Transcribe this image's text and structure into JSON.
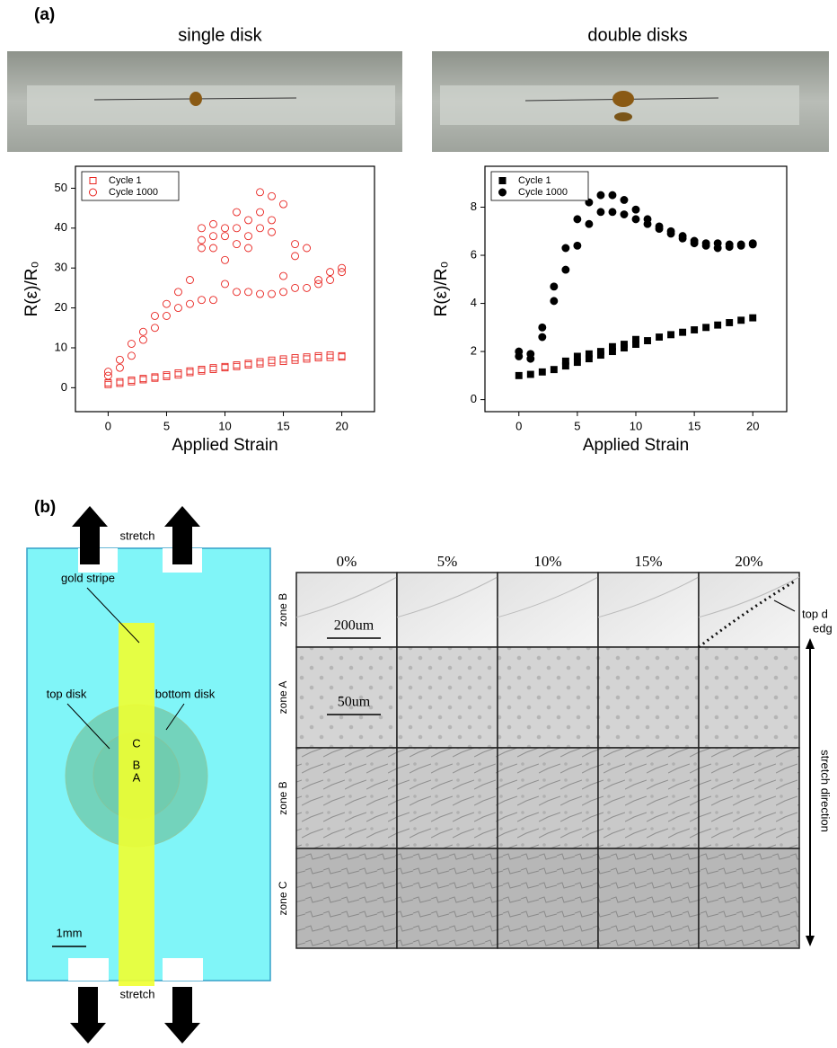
{
  "panel_a_label": "(a)",
  "chart_data": [
    {
      "type": "scatter",
      "title": "single disk",
      "xlabel": "Applied Strain",
      "ylabel": "R(ε)/R₀",
      "xlim": [
        -2.8,
        22.8
      ],
      "ylim": [
        -6,
        55.5
      ],
      "xticks": [
        0,
        5,
        10,
        15,
        20
      ],
      "yticks": [
        0,
        10,
        20,
        30,
        40,
        50
      ],
      "legend": "upper left",
      "series": [
        {
          "name": "Cycle 1",
          "color": "#e8231f",
          "marker": "square",
          "filled": false,
          "x": [
            0,
            1,
            2,
            3,
            4,
            5,
            6,
            7,
            8,
            9,
            10,
            11,
            12,
            13,
            14,
            15,
            16,
            17,
            18,
            19,
            20,
            0,
            1,
            2,
            3,
            4,
            5,
            6,
            7,
            8,
            9,
            10,
            11,
            12,
            13,
            14,
            15,
            16,
            17,
            18,
            19,
            20
          ],
          "values": [
            1.2,
            1.5,
            1.9,
            2.3,
            2.7,
            3.2,
            3.7,
            4.2,
            4.6,
            5.0,
            5.3,
            5.7,
            6.1,
            6.5,
            6.9,
            7.2,
            7.5,
            7.7,
            8.0,
            8.2,
            8.0,
            0.8,
            1.1,
            1.5,
            2.0,
            2.4,
            2.8,
            3.2,
            3.8,
            4.2,
            4.6,
            5.0,
            5.3,
            5.7,
            6.0,
            6.3,
            6.6,
            6.9,
            7.2,
            7.5,
            7.6,
            7.7
          ]
        },
        {
          "name": "Cycle 1000",
          "color": "#e8231f",
          "marker": "circle",
          "filled": false,
          "x": [
            0,
            1,
            2,
            3,
            4,
            5,
            6,
            7,
            8,
            9,
            10,
            11,
            12,
            13,
            14,
            15,
            16,
            17,
            18,
            19,
            20,
            0,
            1,
            2,
            3,
            4,
            5,
            6,
            7,
            8,
            9,
            10,
            11,
            12,
            13,
            14,
            15,
            16,
            17,
            18,
            19,
            20,
            8,
            9,
            10,
            11,
            12,
            13,
            14,
            15,
            16,
            8,
            9,
            10,
            11,
            12,
            13,
            14
          ],
          "values": [
            3,
            5,
            8,
            12,
            15,
            18,
            20,
            21,
            22,
            22,
            26,
            24,
            24,
            23.5,
            23.5,
            24,
            25,
            25,
            26,
            27,
            29,
            4,
            7,
            11,
            14,
            18,
            21,
            24,
            27,
            35,
            38,
            32,
            36,
            35,
            40,
            42,
            28,
            33,
            35,
            27,
            29,
            30,
            40,
            41,
            40,
            44,
            42,
            49,
            48,
            46,
            36,
            37,
            35,
            38,
            40,
            38,
            44,
            39
          ]
        }
      ]
    },
    {
      "type": "scatter",
      "title": "double disks",
      "xlabel": "Applied Strain",
      "ylabel": "R(ε)/R₀",
      "xlim": [
        -2.9,
        22.9
      ],
      "ylim": [
        -0.5,
        9.7
      ],
      "xticks": [
        0,
        5,
        10,
        15,
        20
      ],
      "yticks": [
        0,
        2,
        4,
        6,
        8
      ],
      "legend": "upper left",
      "series": [
        {
          "name": "Cycle 1",
          "color": "#000000",
          "marker": "square",
          "filled": true,
          "x": [
            0,
            1,
            2,
            3,
            4,
            5,
            6,
            7,
            8,
            9,
            10,
            11,
            12,
            13,
            14,
            15,
            16,
            17,
            18,
            19,
            20,
            4,
            5,
            6,
            7,
            8,
            9,
            10
          ],
          "values": [
            1.0,
            1.05,
            1.15,
            1.25,
            1.4,
            1.55,
            1.7,
            1.85,
            2.0,
            2.15,
            2.3,
            2.45,
            2.6,
            2.7,
            2.8,
            2.9,
            3.0,
            3.1,
            3.2,
            3.3,
            3.4,
            1.6,
            1.8,
            1.9,
            2.0,
            2.2,
            2.3,
            2.5
          ]
        },
        {
          "name": "Cycle 1000",
          "color": "#000000",
          "marker": "circle",
          "filled": true,
          "x": [
            0,
            1,
            2,
            3,
            4,
            5,
            6,
            7,
            8,
            9,
            10,
            11,
            12,
            13,
            14,
            15,
            16,
            17,
            18,
            19,
            20,
            0,
            1,
            2,
            3,
            4,
            5,
            6,
            7,
            8,
            9,
            10,
            11,
            12,
            13,
            14,
            15,
            16,
            17,
            18,
            19,
            20
          ],
          "values": [
            1.8,
            1.7,
            2.6,
            4.1,
            5.4,
            6.4,
            7.3,
            7.8,
            7.8,
            7.7,
            7.5,
            7.3,
            7.1,
            6.9,
            6.7,
            6.5,
            6.4,
            6.3,
            6.35,
            6.4,
            6.45,
            2.0,
            1.9,
            3.0,
            4.7,
            6.3,
            7.5,
            8.2,
            8.5,
            8.5,
            8.3,
            7.9,
            7.5,
            7.2,
            7.0,
            6.8,
            6.6,
            6.5,
            6.5,
            6.45,
            6.45,
            6.5
          ]
        }
      ]
    }
  ],
  "panel_b_label": "(b)",
  "schematic": {
    "stretch_top": "stretch",
    "gold_stripe": "gold stripe",
    "top_disk": "top disk",
    "bottom_disk": "bottom disk",
    "zone_letters": [
      "C",
      "B",
      "A"
    ],
    "scale_bar": "1mm",
    "stretch_bottom": "stretch"
  },
  "micrographs": {
    "columns": [
      "0%",
      "5%",
      "10%",
      "15%",
      "20%"
    ],
    "rows": [
      "zone B",
      "zone A",
      "zone B",
      "zone C"
    ],
    "scale_bars": [
      "200um",
      "50um"
    ],
    "annotation": [
      "top d",
      "edg"
    ],
    "stretch_direction": "stretch direction"
  }
}
